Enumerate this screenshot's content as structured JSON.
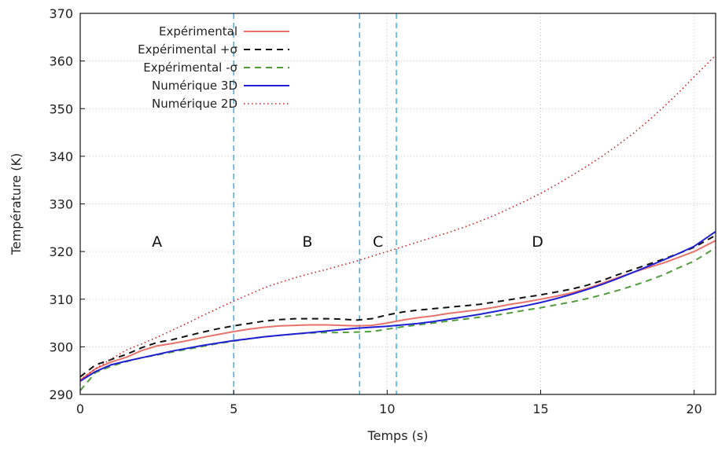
{
  "chart_data": {
    "type": "line",
    "title": "",
    "xlabel": "Temps (s)",
    "ylabel": "Température (K)",
    "xlim": [
      0,
      20.7
    ],
    "ylim": [
      290,
      370
    ],
    "xticks": [
      0,
      5,
      10,
      15,
      20
    ],
    "xtick_labels": [
      "0",
      "5",
      "10",
      "15",
      "20"
    ],
    "yticks": [
      290,
      300,
      310,
      320,
      330,
      340,
      350,
      360,
      370
    ],
    "ytick_labels": [
      "290",
      "300",
      "310",
      "320",
      "330",
      "340",
      "350",
      "360",
      "370"
    ],
    "grid": true,
    "legend_position": "top-left",
    "vertical_lines": [
      5.0,
      9.1,
      10.3
    ],
    "vertical_line_color": "#4fb3e8",
    "regions": [
      {
        "label": "A",
        "x": 2.5,
        "y": 321
      },
      {
        "label": "B",
        "x": 7.4,
        "y": 321
      },
      {
        "label": "C",
        "x": 9.7,
        "y": 321
      },
      {
        "label": "D",
        "x": 14.9,
        "y": 321
      }
    ],
    "series": [
      {
        "name": "Expérimental",
        "color": "#e8736b",
        "dash": "solid",
        "x": [
          0,
          0.5,
          1,
          1.5,
          2,
          2.5,
          3,
          3.5,
          4,
          4.5,
          5,
          5.5,
          6,
          6.5,
          7,
          7.5,
          8,
          8.5,
          9,
          9.5,
          10,
          10.5,
          11,
          11.5,
          12,
          12.5,
          13,
          13.5,
          14,
          14.5,
          15,
          15.5,
          16,
          16.5,
          17,
          17.5,
          18,
          18.5,
          19,
          19.5,
          20,
          20.7
        ],
        "values": [
          293,
          295.4,
          296.8,
          297.8,
          299.2,
          300.2,
          300.7,
          301.3,
          302.0,
          302.6,
          303.2,
          303.7,
          304.1,
          304.4,
          304.5,
          304.6,
          304.6,
          304.5,
          304.4,
          304.5,
          305.0,
          305.6,
          306.1,
          306.5,
          307.0,
          307.4,
          307.8,
          308.3,
          308.9,
          309.4,
          310.0,
          310.6,
          311.3,
          312.2,
          313.3,
          314.5,
          315.6,
          316.6,
          317.6,
          318.8,
          320.0,
          322.3
        ]
      },
      {
        "name": "Expérimental +σ",
        "color": "#111111",
        "dash": "dashed",
        "x": [
          0,
          0.5,
          1,
          1.5,
          2,
          2.5,
          3,
          3.5,
          4,
          4.5,
          5,
          5.5,
          6,
          6.5,
          7,
          7.5,
          8,
          8.5,
          9,
          9.5,
          10,
          10.5,
          11,
          11.5,
          12,
          12.5,
          13,
          13.5,
          14,
          14.5,
          15,
          15.5,
          16,
          16.5,
          17,
          17.5,
          18,
          18.5,
          19,
          19.5,
          20,
          20.7
        ],
        "values": [
          293.7,
          296.2,
          297.3,
          298.4,
          299.8,
          300.9,
          301.5,
          302.3,
          303.1,
          303.8,
          304.4,
          304.9,
          305.4,
          305.7,
          305.9,
          305.9,
          305.9,
          305.8,
          305.6,
          305.9,
          306.7,
          307.3,
          307.7,
          308.0,
          308.3,
          308.6,
          308.9,
          309.4,
          309.9,
          310.4,
          310.9,
          311.5,
          312.1,
          312.9,
          313.9,
          315.1,
          316.2,
          317.3,
          318.4,
          319.6,
          320.9,
          323.4
        ]
      },
      {
        "name": "Expérimental -σ",
        "color": "#4f9e3b",
        "dash": "dashed",
        "x": [
          0,
          0.5,
          1,
          1.5,
          2,
          2.5,
          3,
          3.5,
          4,
          4.5,
          5,
          5.5,
          6,
          6.5,
          7,
          7.5,
          8,
          8.5,
          9,
          9.5,
          10,
          10.5,
          11,
          11.5,
          12,
          12.5,
          13,
          13.5,
          14,
          14.5,
          15,
          15.5,
          16,
          16.5,
          17,
          17.5,
          18,
          18.5,
          19,
          19.5,
          20,
          20.7
        ],
        "values": [
          290.8,
          294.6,
          295.9,
          296.9,
          297.7,
          298.3,
          298.9,
          299.5,
          300.1,
          300.7,
          301.2,
          301.7,
          302.1,
          302.4,
          302.7,
          302.9,
          303.0,
          303.0,
          303.1,
          303.2,
          303.7,
          304.2,
          304.6,
          305.0,
          305.4,
          305.8,
          306.2,
          306.6,
          307.1,
          307.7,
          308.2,
          308.8,
          309.4,
          310.1,
          310.9,
          311.8,
          312.8,
          313.9,
          315.1,
          316.6,
          318.0,
          320.8
        ]
      },
      {
        "name": "Numérique 3D",
        "color": "#1f1fd6",
        "dash": "solid",
        "x": [
          0,
          0.5,
          1,
          1.5,
          2,
          2.5,
          3,
          3.5,
          4,
          4.5,
          5,
          5.5,
          6,
          6.5,
          7,
          7.5,
          8,
          8.5,
          9,
          9.5,
          10,
          10.5,
          11,
          11.5,
          12,
          12.5,
          13,
          13.5,
          14,
          14.5,
          15,
          15.5,
          16,
          16.5,
          17,
          17.5,
          18,
          18.5,
          19,
          19.5,
          20,
          20.7
        ],
        "values": [
          292.8,
          294.8,
          296.2,
          297.0,
          297.7,
          298.4,
          299.1,
          299.7,
          300.3,
          300.8,
          301.3,
          301.7,
          302.1,
          302.4,
          302.7,
          303.0,
          303.3,
          303.6,
          303.9,
          304.1,
          304.3,
          304.6,
          304.9,
          305.3,
          305.8,
          306.3,
          306.8,
          307.4,
          308.0,
          308.6,
          309.3,
          310.1,
          311.0,
          312.0,
          313.1,
          314.3,
          315.6,
          316.9,
          318.2,
          319.6,
          321.1,
          324.2
        ]
      },
      {
        "name": "Numérique 2D",
        "color": "#cc2222",
        "dash": "dotted",
        "x": [
          0,
          0.5,
          1,
          1.5,
          2,
          2.5,
          3,
          3.5,
          4,
          4.5,
          5,
          5.5,
          6,
          6.5,
          7,
          7.5,
          8,
          8.5,
          9,
          9.5,
          10,
          10.5,
          11,
          11.5,
          12,
          12.5,
          13,
          13.5,
          14,
          14.5,
          15,
          15.5,
          16,
          16.5,
          17,
          17.5,
          18,
          18.5,
          19,
          19.5,
          20,
          20.7
        ],
        "values": [
          293.0,
          295.4,
          297.4,
          299.3,
          300.6,
          302.0,
          303.5,
          305.0,
          306.6,
          308.1,
          309.6,
          311.0,
          312.4,
          313.5,
          314.5,
          315.4,
          316.2,
          317.1,
          318.0,
          319.0,
          320.0,
          321.0,
          322.0,
          323.0,
          324.0,
          325.1,
          326.3,
          327.6,
          329.1,
          330.6,
          332.2,
          334.0,
          335.9,
          337.9,
          340.0,
          342.3,
          344.7,
          347.4,
          350.3,
          353.4,
          356.7,
          361.2
        ]
      }
    ]
  }
}
